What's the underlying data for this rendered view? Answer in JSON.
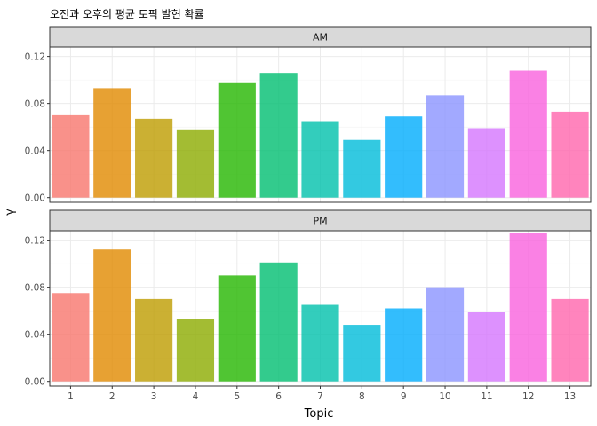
{
  "chart_data": {
    "type": "bar",
    "title": "오전과 오후의 평균 토픽 발현 확률",
    "xlabel": "Topic",
    "ylabel": "γ",
    "categories": [
      "1",
      "2",
      "3",
      "4",
      "5",
      "6",
      "7",
      "8",
      "9",
      "10",
      "11",
      "12",
      "13"
    ],
    "ylim": [
      -0.004,
      0.128
    ],
    "yticks": [
      0.0,
      0.04,
      0.08,
      0.12
    ],
    "ytick_labels": [
      "0.00",
      "0.04",
      "0.08",
      "0.12"
    ],
    "grid": true,
    "facets": [
      {
        "label": "AM",
        "values": [
          0.07,
          0.093,
          0.067,
          0.058,
          0.098,
          0.106,
          0.065,
          0.049,
          0.069,
          0.087,
          0.059,
          0.108,
          0.073
        ]
      },
      {
        "label": "PM",
        "values": [
          0.075,
          0.112,
          0.07,
          0.053,
          0.09,
          0.101,
          0.065,
          0.048,
          0.062,
          0.08,
          0.059,
          0.126,
          0.07
        ]
      }
    ],
    "colors": [
      "#F8766D",
      "#E18A00",
      "#BE9C00",
      "#8CAB00",
      "#24B700",
      "#00BE70",
      "#00C1AB",
      "#00BBDA",
      "#00ACFC",
      "#8B93FF",
      "#D575FE",
      "#F962DD",
      "#FF65AC"
    ],
    "bar_opacity": 0.8
  }
}
